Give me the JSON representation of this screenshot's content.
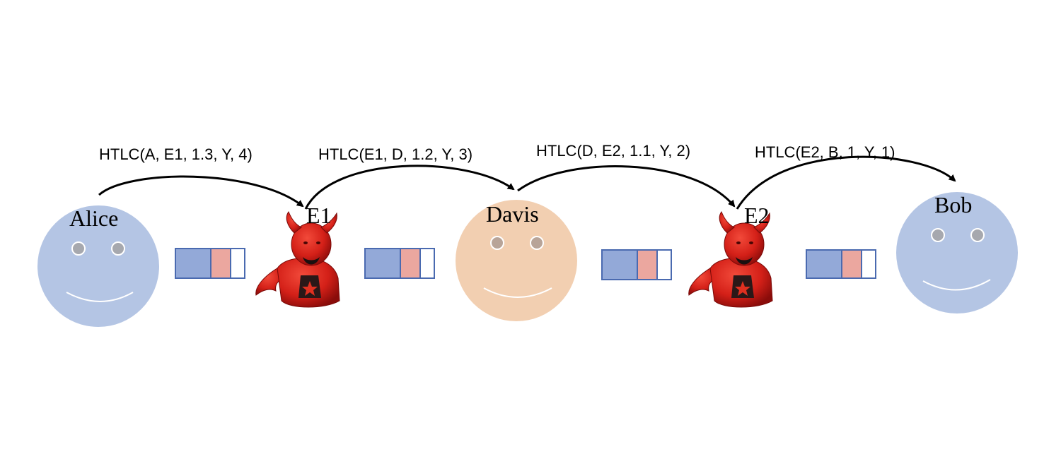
{
  "nodes": {
    "alice": {
      "label": "Alice",
      "role": "honest",
      "color": "#b4c5e4"
    },
    "e1": {
      "label": "E1",
      "role": "attacker"
    },
    "davis": {
      "label": "Davis",
      "role": "honest",
      "color": "#f2cfb1"
    },
    "e2": {
      "label": "E2",
      "role": "attacker"
    },
    "bob": {
      "label": "Bob",
      "role": "honest",
      "color": "#b4c5e4"
    }
  },
  "htlcs": [
    {
      "label": "HTLC(A, E1, 1.3, Y, 4)",
      "from": "alice",
      "to": "e1"
    },
    {
      "label": "HTLC(E1, D, 1.2, Y, 3)",
      "from": "e1",
      "to": "davis"
    },
    {
      "label": "HTLC(D, E2, 1.1, Y, 2)",
      "from": "davis",
      "to": "e2"
    },
    {
      "label": "HTLC(E2, B, 1, Y, 1)",
      "from": "e2",
      "to": "bob"
    }
  ],
  "channels": [
    {
      "between": [
        "alice",
        "e1"
      ]
    },
    {
      "between": [
        "e1",
        "davis"
      ]
    },
    {
      "between": [
        "davis",
        "e2"
      ]
    },
    {
      "between": [
        "e2",
        "bob"
      ]
    }
  ],
  "colors": {
    "channel_blue": "#93a9d8",
    "channel_red": "#eba79f",
    "channel_border": "#4a6ab0",
    "devil_red": "#d42018",
    "devil_dark": "#8a0c0a"
  },
  "icons": {
    "attacker": "devil-icon",
    "honest": "smiley-face-icon"
  }
}
